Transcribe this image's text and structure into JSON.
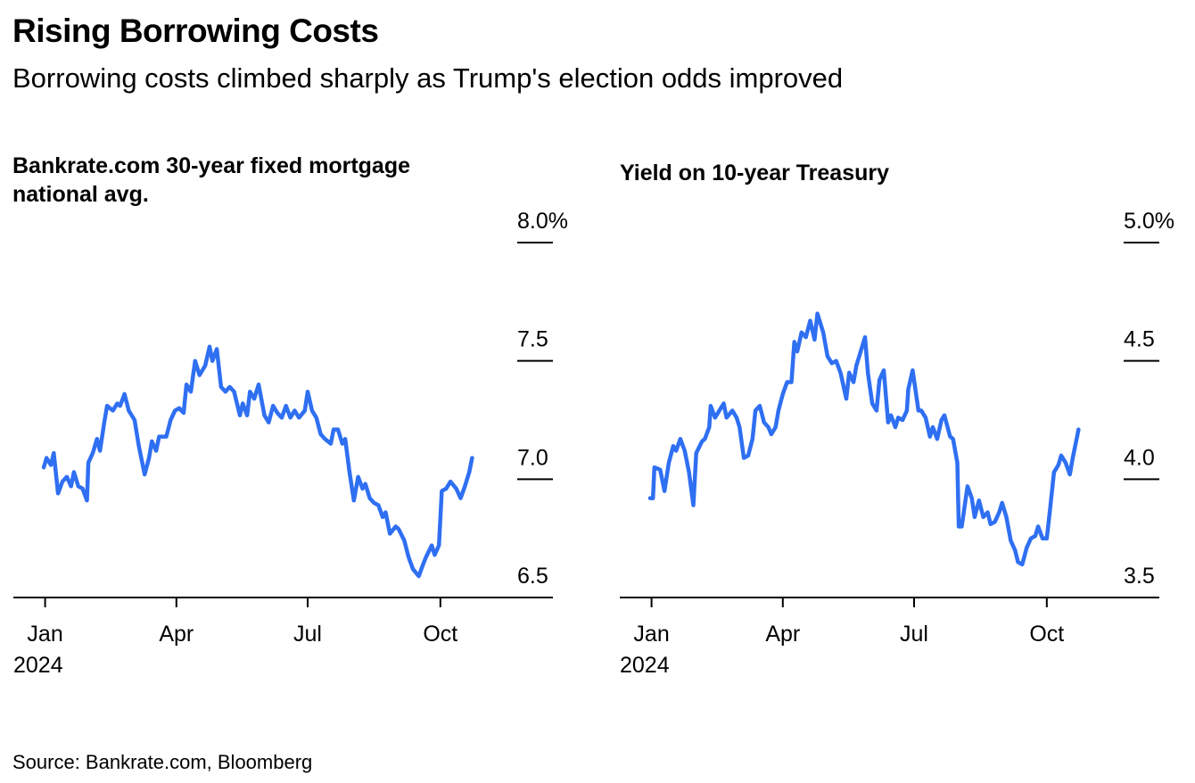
{
  "title": "Rising Borrowing Costs",
  "subtitle": "Borrowing costs climbed sharply as Trump's election odds improved",
  "source": "Source: Bankrate.com, Bloomberg",
  "chart_data": [
    {
      "type": "line",
      "title": "Bankrate.com 30-year fixed mortgage national avg.",
      "xlim": [
        -22,
        352
      ],
      "xticks": [
        {
          "value": 0,
          "label": "Jan",
          "sublabel": "2024"
        },
        {
          "value": 91,
          "label": "Apr"
        },
        {
          "value": 182,
          "label": "Jul"
        },
        {
          "value": 274,
          "label": "Oct"
        }
      ],
      "ylim": [
        6.5,
        8.0
      ],
      "yticks": [
        {
          "value": 8.0,
          "label": "8.0%"
        },
        7.5,
        {
          "value": 7,
          "label": "7.0"
        },
        6.5
      ],
      "x": [
        -1,
        1,
        4,
        6,
        9,
        12,
        15,
        18,
        20,
        23,
        26,
        29,
        30,
        33,
        36,
        38,
        41,
        43,
        47,
        50,
        52,
        55,
        58,
        62,
        65,
        69,
        72,
        74,
        77,
        79,
        84,
        87,
        90,
        93,
        96,
        98,
        101,
        104,
        107,
        111,
        114,
        116,
        119,
        122,
        125,
        128,
        131,
        135,
        137,
        140,
        142,
        145,
        148,
        152,
        155,
        158,
        161,
        164,
        167,
        170,
        173,
        176,
        180,
        182,
        185,
        188,
        191,
        194,
        198,
        200,
        203,
        206,
        208,
        211,
        214,
        217,
        220,
        222,
        225,
        228,
        231,
        234,
        236,
        239,
        243,
        245,
        249,
        252,
        255,
        259,
        262,
        264,
        268,
        270,
        273,
        275,
        278,
        281,
        285,
        288,
        291,
        294,
        296
      ],
      "series": [
        {
          "color": "#2f6ff2",
          "values": [
            7.05,
            7.09,
            7.06,
            7.11,
            6.94,
            6.99,
            7.01,
            6.97,
            7.03,
            6.97,
            6.96,
            6.91,
            7.07,
            7.11,
            7.17,
            7.12,
            7.24,
            7.31,
            7.29,
            7.32,
            7.31,
            7.36,
            7.29,
            7.25,
            7.14,
            7.02,
            7.09,
            7.16,
            7.12,
            7.18,
            7.18,
            7.25,
            7.29,
            7.3,
            7.28,
            7.4,
            7.37,
            7.5,
            7.44,
            7.48,
            7.56,
            7.5,
            7.55,
            7.39,
            7.37,
            7.39,
            7.37,
            7.27,
            7.32,
            7.27,
            7.37,
            7.34,
            7.4,
            7.27,
            7.24,
            7.31,
            7.28,
            7.26,
            7.31,
            7.26,
            7.29,
            7.26,
            7.29,
            7.37,
            7.29,
            7.26,
            7.19,
            7.17,
            7.15,
            7.21,
            7.21,
            7.15,
            7.17,
            7.03,
            6.91,
            7.01,
            6.96,
            6.98,
            6.92,
            6.9,
            6.89,
            6.84,
            6.86,
            6.77,
            6.8,
            6.79,
            6.74,
            6.67,
            6.62,
            6.59,
            6.64,
            6.67,
            6.72,
            6.68,
            6.72,
            6.95,
            6.96,
            6.99,
            6.96,
            6.92,
            6.97,
            7.03,
            7.09
          ]
        }
      ]
    },
    {
      "type": "line",
      "title": "Yield on 10-year Treasury",
      "xlim": [
        -22,
        352
      ],
      "xticks": [
        {
          "value": 0,
          "label": "Jan",
          "sublabel": "2024"
        },
        {
          "value": 91,
          "label": "Apr"
        },
        {
          "value": 182,
          "label": "Jul"
        },
        {
          "value": 274,
          "label": "Oct"
        }
      ],
      "ylim": [
        3.5,
        5.0
      ],
      "yticks": [
        {
          "value": 5.0,
          "label": "5.0%"
        },
        4.5,
        {
          "value": 4,
          "label": "4.0"
        },
        3.5
      ],
      "x": [
        -1,
        1,
        2,
        6,
        9,
        12,
        15,
        17,
        20,
        23,
        26,
        29,
        31,
        35,
        37,
        40,
        41,
        44,
        47,
        50,
        52,
        56,
        59,
        61,
        64,
        67,
        70,
        72,
        75,
        78,
        81,
        83,
        86,
        88,
        91,
        94,
        97,
        99,
        101,
        104,
        107,
        110,
        113,
        115,
        119,
        122,
        125,
        128,
        131,
        135,
        137,
        140,
        142,
        145,
        148,
        150,
        153,
        156,
        158,
        161,
        164,
        166,
        169,
        171,
        174,
        177,
        178,
        181,
        185,
        187,
        190,
        193,
        195,
        198,
        201,
        203,
        207,
        209,
        212,
        213,
        215,
        219,
        222,
        224,
        227,
        230,
        233,
        235,
        238,
        241,
        243,
        246,
        249,
        252,
        254,
        257,
        260,
        263,
        266,
        268,
        271,
        274,
        276,
        279,
        282,
        284,
        287,
        290,
        292,
        295,
        296
      ],
      "series": [
        {
          "color": "#2f6ff2",
          "values": [
            3.92,
            3.92,
            4.05,
            4.04,
            3.95,
            4.07,
            4.14,
            4.12,
            4.17,
            4.12,
            4.03,
            3.89,
            4.11,
            4.16,
            4.17,
            4.22,
            4.31,
            4.26,
            4.29,
            4.32,
            4.26,
            4.29,
            4.26,
            4.22,
            4.09,
            4.1,
            4.17,
            4.29,
            4.31,
            4.24,
            4.22,
            4.19,
            4.22,
            4.29,
            4.36,
            4.41,
            4.41,
            4.58,
            4.54,
            4.62,
            4.6,
            4.67,
            4.59,
            4.7,
            4.62,
            4.52,
            4.49,
            4.5,
            4.45,
            4.34,
            4.45,
            4.41,
            4.48,
            4.54,
            4.6,
            4.45,
            4.32,
            4.29,
            4.42,
            4.46,
            4.24,
            4.27,
            4.22,
            4.26,
            4.25,
            4.29,
            4.38,
            4.46,
            4.29,
            4.29,
            4.26,
            4.18,
            4.22,
            4.17,
            4.25,
            4.27,
            4.18,
            4.17,
            4.07,
            3.8,
            3.8,
            3.97,
            3.92,
            3.84,
            3.91,
            3.84,
            3.86,
            3.81,
            3.82,
            3.86,
            3.9,
            3.84,
            3.74,
            3.7,
            3.65,
            3.64,
            3.71,
            3.75,
            3.76,
            3.8,
            3.75,
            3.75,
            3.86,
            4.03,
            4.06,
            4.1,
            4.07,
            4.02,
            4.09,
            4.18,
            4.21
          ]
        }
      ]
    }
  ]
}
